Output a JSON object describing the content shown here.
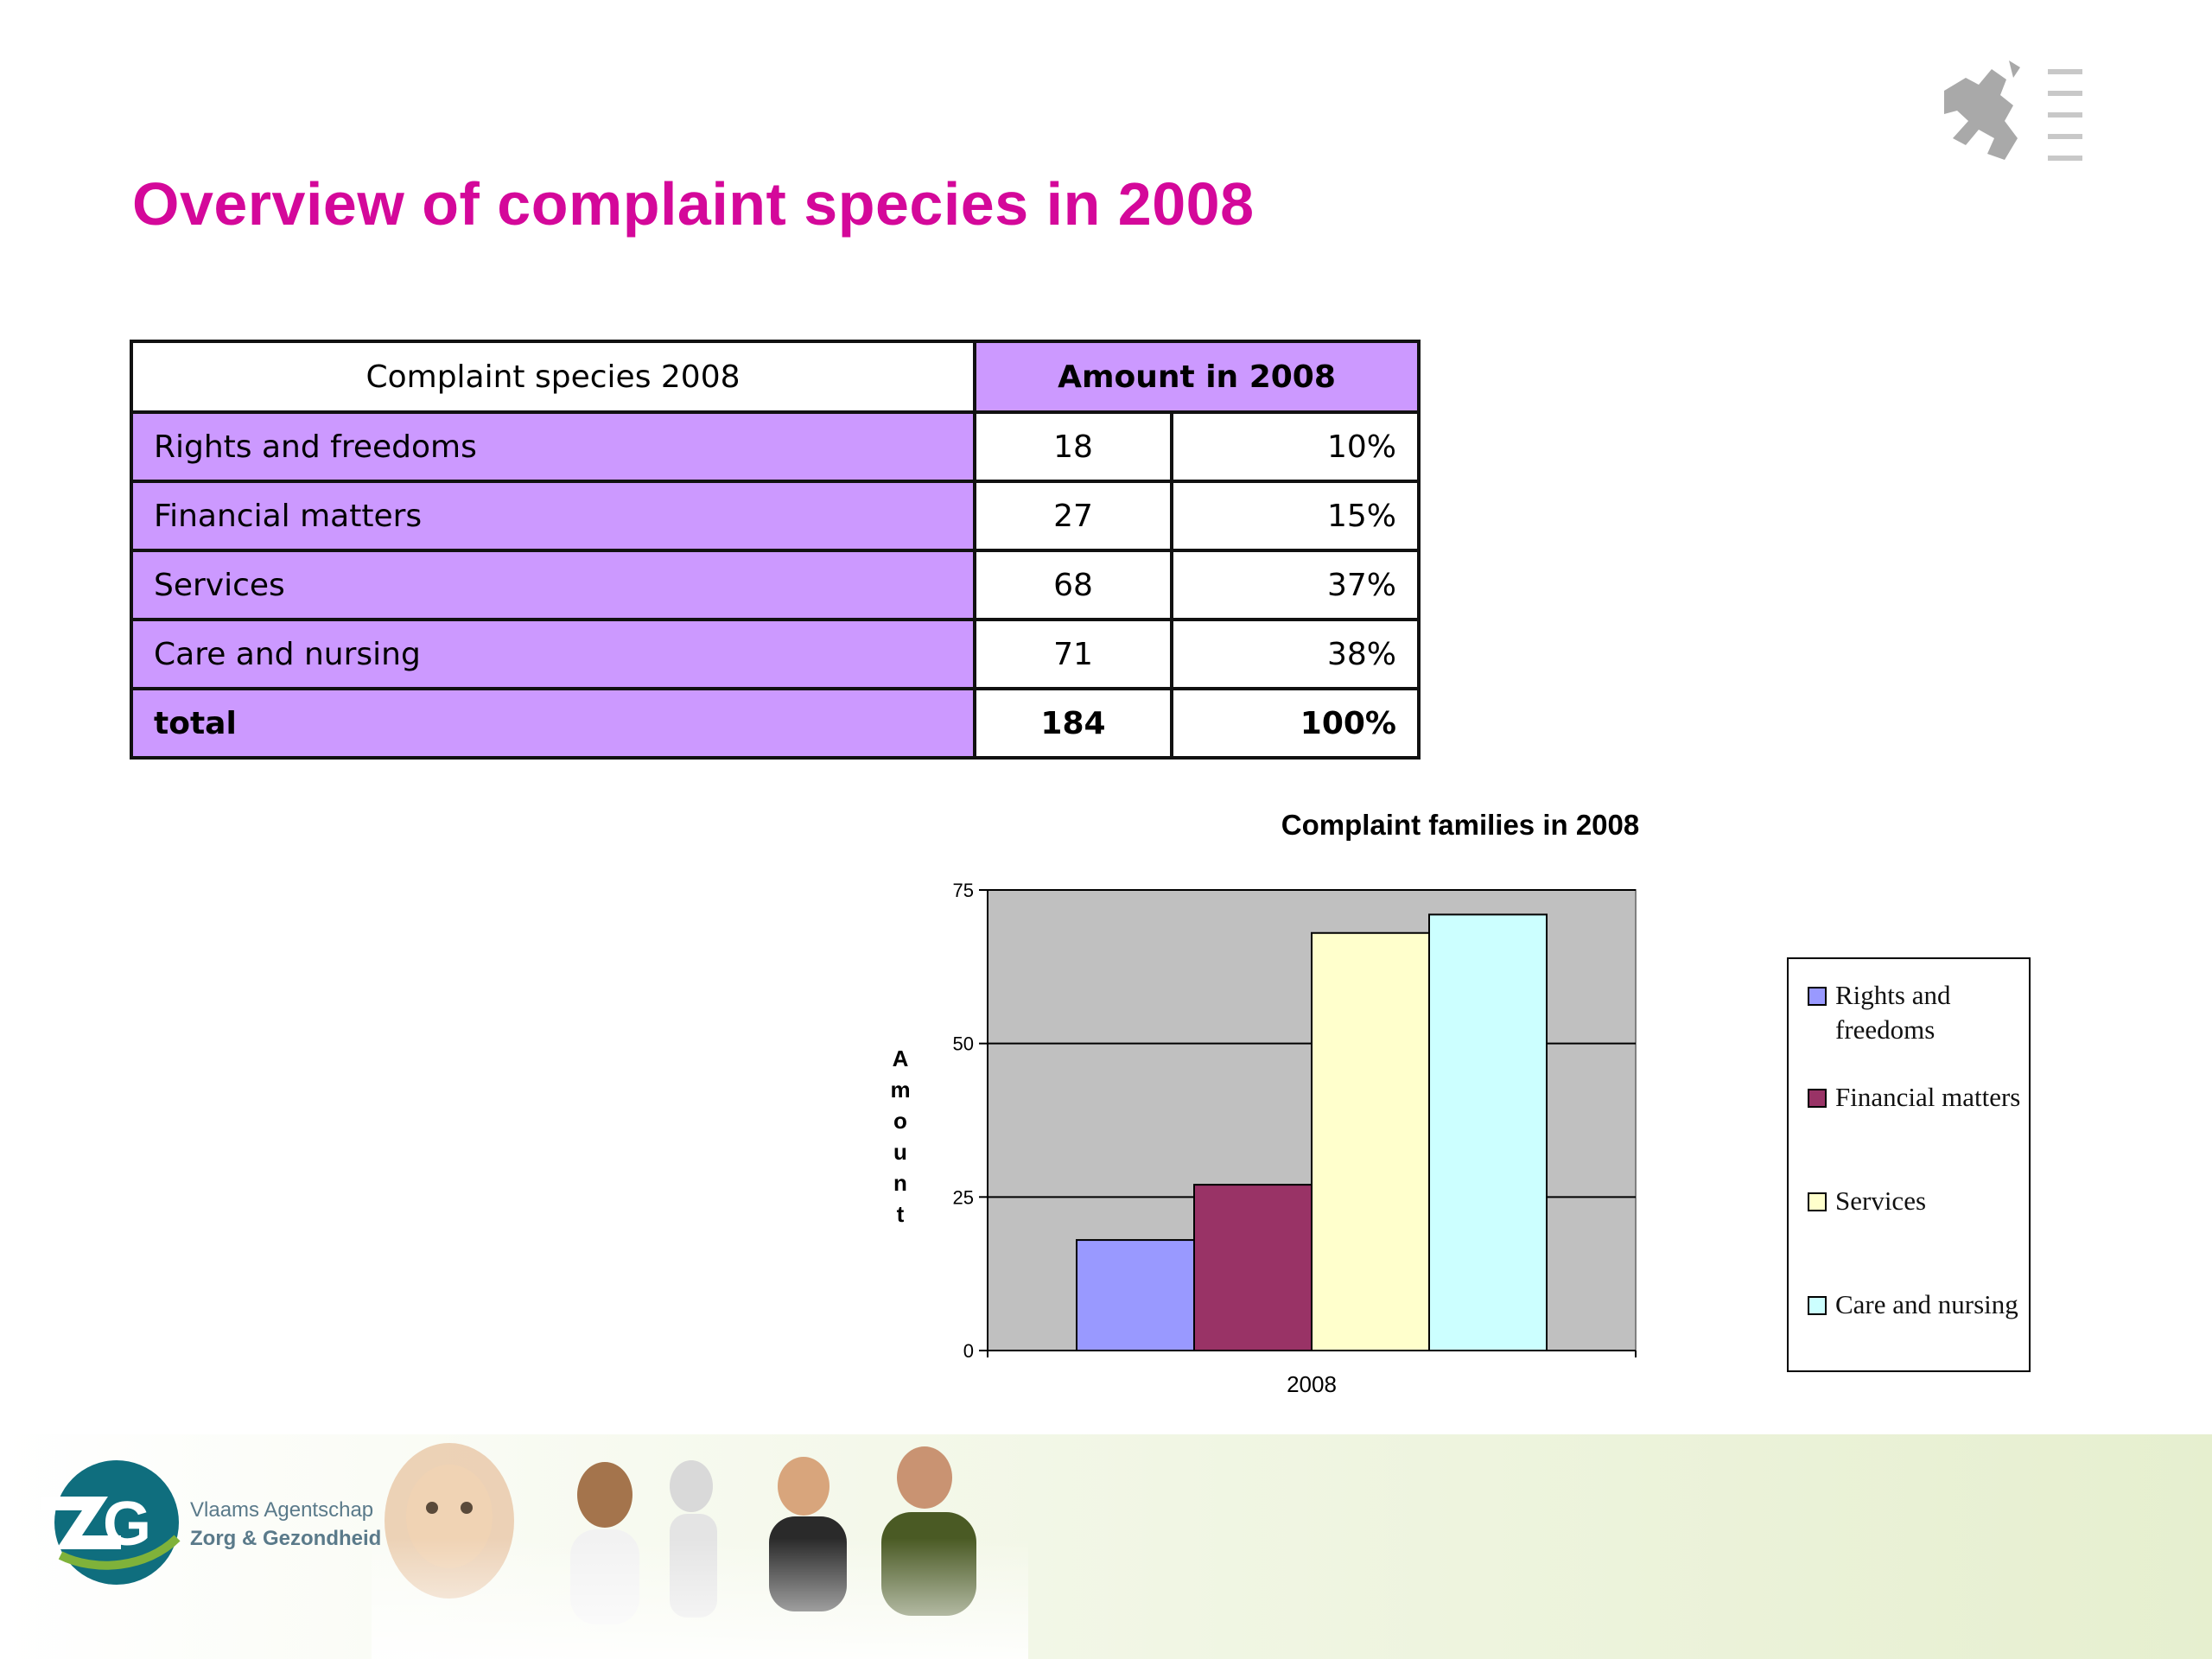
{
  "slide": {
    "title": "Overview of complaint species in 2008"
  },
  "table": {
    "header_left": "Complaint species 2008",
    "header_right": "Amount in 2008",
    "rows": [
      {
        "label": "Rights and freedoms",
        "amount": "18",
        "percent": "10%"
      },
      {
        "label": "Financial matters",
        "amount": "27",
        "percent": "15%"
      },
      {
        "label": "Services",
        "amount": "68",
        "percent": "37%"
      },
      {
        "label": "Care and nursing",
        "amount": "71",
        "percent": "38%"
      }
    ],
    "total": {
      "label": "total",
      "amount": "184",
      "percent": "100%"
    }
  },
  "chart_data": {
    "type": "bar",
    "title": "Complaint families in 2008",
    "ylabel": "Amount",
    "xlabel": "",
    "categories": [
      "2008"
    ],
    "series": [
      {
        "name": "Rights and freedoms",
        "values": [
          18
        ],
        "color": "#9999ff"
      },
      {
        "name": "Financial matters",
        "values": [
          27
        ],
        "color": "#993366"
      },
      {
        "name": "Services",
        "values": [
          68
        ],
        "color": "#ffffcc"
      },
      {
        "name": "Care and nursing",
        "values": [
          71
        ],
        "color": "#ccffff"
      }
    ],
    "ylim": [
      0,
      75
    ],
    "yticks": [
      0,
      25,
      50,
      75
    ],
    "grid": true,
    "plot_background": "#c0c0c0",
    "legend_position": "right"
  },
  "footer": {
    "logo_letters": "ZG",
    "logo_text_line1": "Vlaams Agentschap",
    "logo_text_line2": "Zorg & Gezondheid"
  },
  "colors": {
    "title": "#d4089a",
    "table_accent": "#cc99ff"
  }
}
